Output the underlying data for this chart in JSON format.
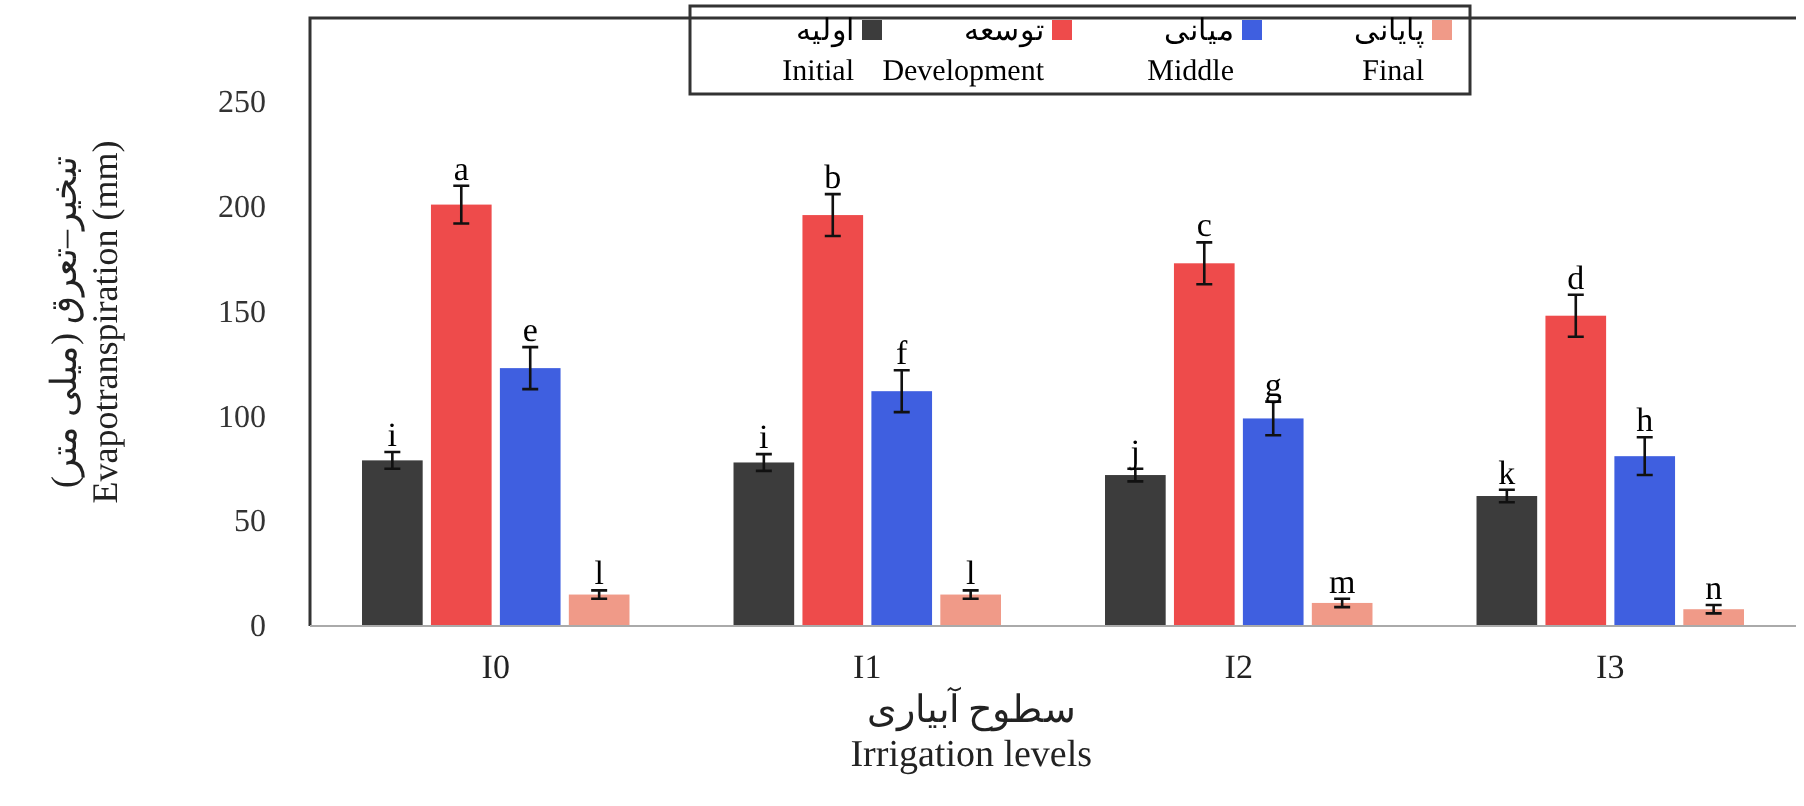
{
  "chart_data": {
    "type": "bar",
    "xlabel": "سطوح آبیاری\nIrrigation levels",
    "ylabel": "تبخیر–تعرق (میلی متر)\nEvapotranspiration (mm)",
    "categories": [
      "I0",
      "I1",
      "I2",
      "I3"
    ],
    "ylim": [
      0,
      290
    ],
    "yticks": [
      0,
      50,
      100,
      150,
      200,
      250
    ],
    "grid": false,
    "legend": "top",
    "series": [
      {
        "name": "اولیه\nInitial",
        "color": "#3c3c3c",
        "values": [
          79,
          78,
          72,
          62
        ],
        "errors": [
          4,
          4,
          3,
          3
        ],
        "value_labels": [
          "i",
          "i",
          "j",
          "k"
        ]
      },
      {
        "name": "توسعه\nDevelopment",
        "color": "#ee4b4b",
        "values": [
          201,
          196,
          173,
          148
        ],
        "errors": [
          9,
          10,
          10,
          10
        ],
        "value_labels": [
          "a",
          "b",
          "c",
          "d"
        ]
      },
      {
        "name": "میانی\nMiddle",
        "color": "#3f5fe0",
        "values": [
          123,
          112,
          99,
          81
        ],
        "errors": [
          10,
          10,
          8,
          9
        ],
        "value_labels": [
          "e",
          "f",
          "g",
          "h"
        ]
      },
      {
        "name": "پایانی\nFinal",
        "color": "#f09a88",
        "values": [
          15,
          15,
          11,
          8
        ],
        "errors": [
          2,
          2,
          2,
          2
        ],
        "value_labels": [
          "l",
          "l",
          "m",
          "n"
        ]
      }
    ]
  }
}
